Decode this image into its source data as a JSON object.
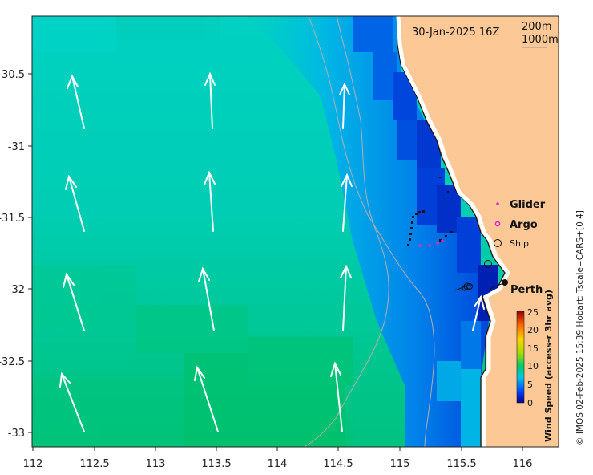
{
  "timestamp": "30-Jan-2025 16Z",
  "depth_contours": [
    "200m",
    "1000m"
  ],
  "legend": {
    "glider_label": "Glider",
    "argo_label": "Argo",
    "ship_label": "Ship",
    "glider_color": "#cc33cc",
    "argo_color": "#dd22dd"
  },
  "city_label": "Perth",
  "colorbar": {
    "title": "Wind Speed (access-r 3hr avg)",
    "ticks": [
      "0",
      "5",
      "10",
      "15",
      "20",
      "25"
    ]
  },
  "credit": "© IMOS 02-Feb-2025 15:39 Hobart; Tscale=CARS+[0 4]",
  "axes": {
    "x_ticks": [
      "112",
      "112.5",
      "113",
      "113.5",
      "114",
      "114.5",
      "115",
      "115.5",
      "116"
    ],
    "y_ticks": [
      "-30.5",
      "-31",
      "-31.5",
      "-32",
      "-32.5",
      "-33"
    ]
  },
  "colors": {
    "land": "#fcc896",
    "ocean_teal": "#00cdb6",
    "ocean_green": "#00c46e",
    "nearshore_blue": "#0046dc"
  }
}
